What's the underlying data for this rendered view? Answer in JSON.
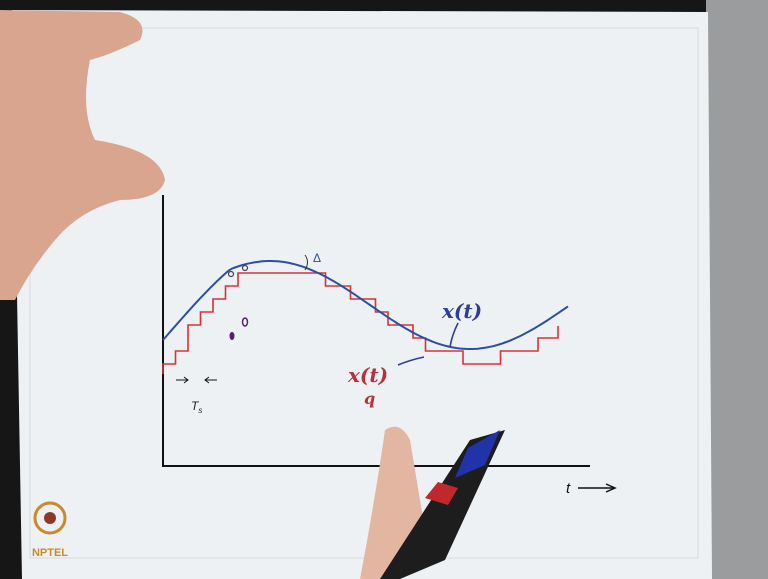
{
  "diagram": {
    "labels": {
      "delta": "Δ",
      "signal": "x(t)",
      "quantized_signal": "x(t)",
      "quantized_subscript": "q",
      "sample_period": "T",
      "sample_period_subscript": "s",
      "time_axis": "t"
    },
    "logo": "NPTEL"
  }
}
